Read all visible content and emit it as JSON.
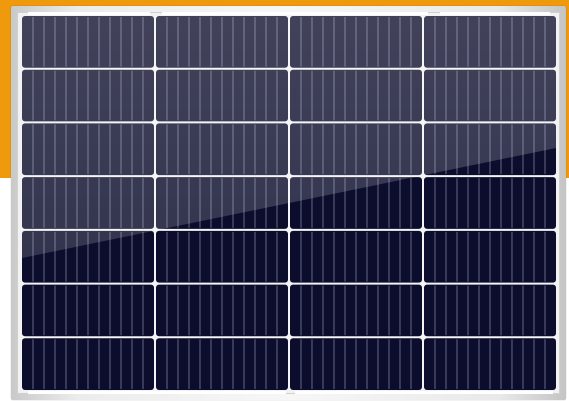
{
  "image": {
    "subject": "solar-panel",
    "colors": {
      "background_accent": "#ee9a0c",
      "background_plain": "#ffffff",
      "frame": "#eeeeee",
      "cell": "#0c0d2c",
      "cell_highlight": "#3a3f5a",
      "grid_line": "#f4f4f4",
      "finger_line": "#6d7090"
    },
    "panel": {
      "cell_columns": 4,
      "cell_rows": 7,
      "fingers_per_cell": 12
    }
  }
}
